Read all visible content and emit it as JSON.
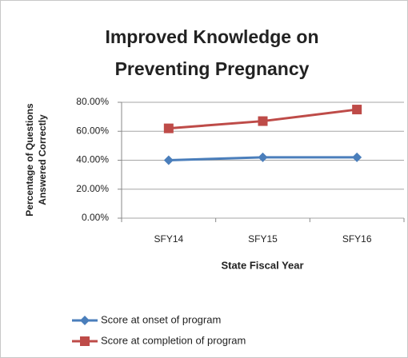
{
  "chart_data": {
    "type": "line",
    "title": [
      "Improved Knowledge on",
      "Preventing Pregnancy"
    ],
    "y_label": [
      "Percentage of Questions",
      "Answered Correctly"
    ],
    "x_label": "State Fiscal Year",
    "categories": [
      "SFY14",
      "SFY15",
      "SFY16"
    ],
    "series": [
      {
        "name": "Score at onset of program",
        "color": "#4a7ebb",
        "marker": "diamond",
        "values": [
          40,
          42,
          42
        ]
      },
      {
        "name": "Score at completion of program",
        "color": "#be4b48",
        "marker": "square",
        "values": [
          62,
          67,
          75
        ]
      }
    ],
    "ylim": [
      0,
      80
    ],
    "yticks": [
      {
        "value": 0,
        "label": "0.00%"
      },
      {
        "value": 20,
        "label": "20.00%"
      },
      {
        "value": 40,
        "label": "40.00%"
      },
      {
        "value": 60,
        "label": "60.00%"
      },
      {
        "value": 80,
        "label": "80.00%"
      }
    ],
    "grid": true,
    "legend": "bottom"
  }
}
